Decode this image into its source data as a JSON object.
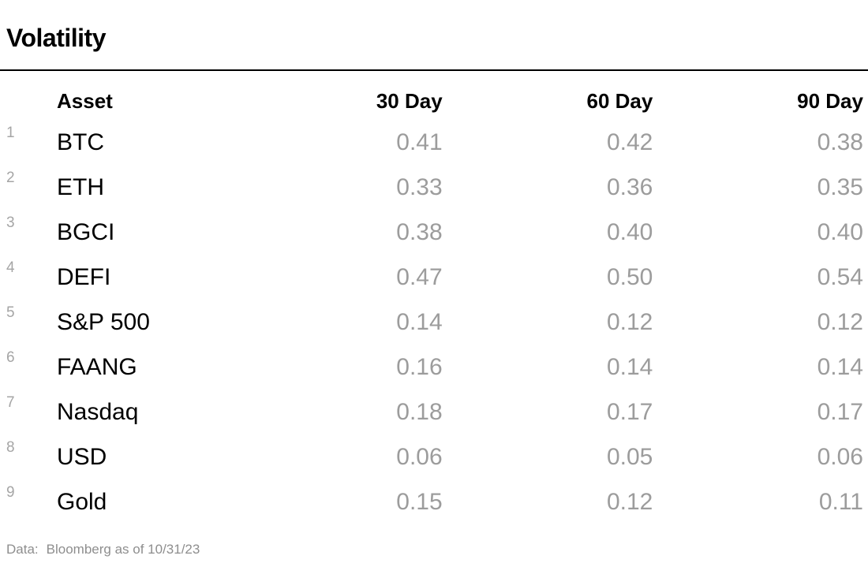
{
  "title": "Volatility",
  "table": {
    "columns": {
      "asset": "Asset",
      "d30": "30 Day",
      "d60": "60 Day",
      "d90": "90 Day"
    },
    "rows": [
      {
        "num": "1",
        "asset": "BTC",
        "d30": "0.41",
        "d60": "0.42",
        "d90": "0.38"
      },
      {
        "num": "2",
        "asset": "ETH",
        "d30": "0.33",
        "d60": "0.36",
        "d90": "0.35"
      },
      {
        "num": "3",
        "asset": "BGCI",
        "d30": "0.38",
        "d60": "0.40",
        "d90": "0.40"
      },
      {
        "num": "4",
        "asset": "DEFI",
        "d30": "0.47",
        "d60": "0.50",
        "d90": "0.54"
      },
      {
        "num": "5",
        "asset": "S&P 500",
        "d30": "0.14",
        "d60": "0.12",
        "d90": "0.12"
      },
      {
        "num": "6",
        "asset": "FAANG",
        "d30": "0.16",
        "d60": "0.14",
        "d90": "0.14"
      },
      {
        "num": "7",
        "asset": "Nasdaq",
        "d30": "0.18",
        "d60": "0.17",
        "d90": "0.17"
      },
      {
        "num": "8",
        "asset": "USD",
        "d30": "0.06",
        "d60": "0.05",
        "d90": "0.06"
      },
      {
        "num": "9",
        "asset": "Gold",
        "d30": "0.15",
        "d60": "0.12",
        "d90": "0.11"
      }
    ]
  },
  "footer": {
    "label": "Data:",
    "text": "Bloomberg as of 10/31/23"
  },
  "colors": {
    "text_primary": "#000000",
    "value_gray": "#9c9c9c",
    "row_number_gray": "#a5a5a5",
    "footer_gray": "#8e8e8e",
    "rule_black": "#000000",
    "background": "#ffffff"
  },
  "chart_data": {
    "type": "table",
    "title": "Volatility",
    "categories": [
      "BTC",
      "ETH",
      "BGCI",
      "DEFI",
      "S&P 500",
      "FAANG",
      "Nasdaq",
      "USD",
      "Gold"
    ],
    "series": [
      {
        "name": "30 Day",
        "values": [
          0.41,
          0.33,
          0.38,
          0.47,
          0.14,
          0.16,
          0.18,
          0.06,
          0.15
        ]
      },
      {
        "name": "60 Day",
        "values": [
          0.42,
          0.36,
          0.4,
          0.5,
          0.12,
          0.14,
          0.17,
          0.05,
          0.12
        ]
      },
      {
        "name": "90 Day",
        "values": [
          0.38,
          0.35,
          0.4,
          0.54,
          0.12,
          0.14,
          0.17,
          0.06,
          0.11
        ]
      }
    ],
    "note": "Data: Bloomberg as of 10/31/23",
    "layout": {
      "row_numbers_visible": true,
      "value_alignment": "right",
      "grid": "off"
    }
  }
}
